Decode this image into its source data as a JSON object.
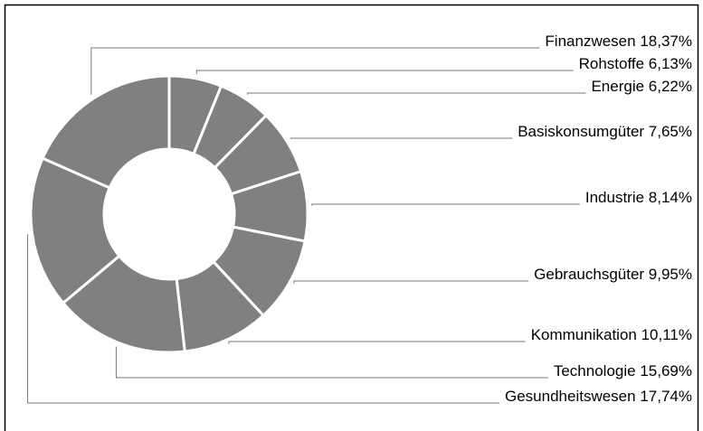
{
  "chart_data": {
    "type": "donut",
    "categories": [
      "Rohstoffe",
      "Energie",
      "Basiskonsumgüter",
      "Industrie",
      "Gebrauchsgüter",
      "Kommunikation",
      "Technologie",
      "Gesundheitswesen",
      "Finanzwesen"
    ],
    "values": [
      6.13,
      6.22,
      7.65,
      8.14,
      9.95,
      10.11,
      15.69,
      17.74,
      18.37
    ],
    "value_labels": [
      "6,13%",
      "6,22%",
      "7,65%",
      "8,14%",
      "9,95%",
      "10,11%",
      "15,69%",
      "17,74%",
      "18,37%"
    ],
    "color": "#808080"
  }
}
